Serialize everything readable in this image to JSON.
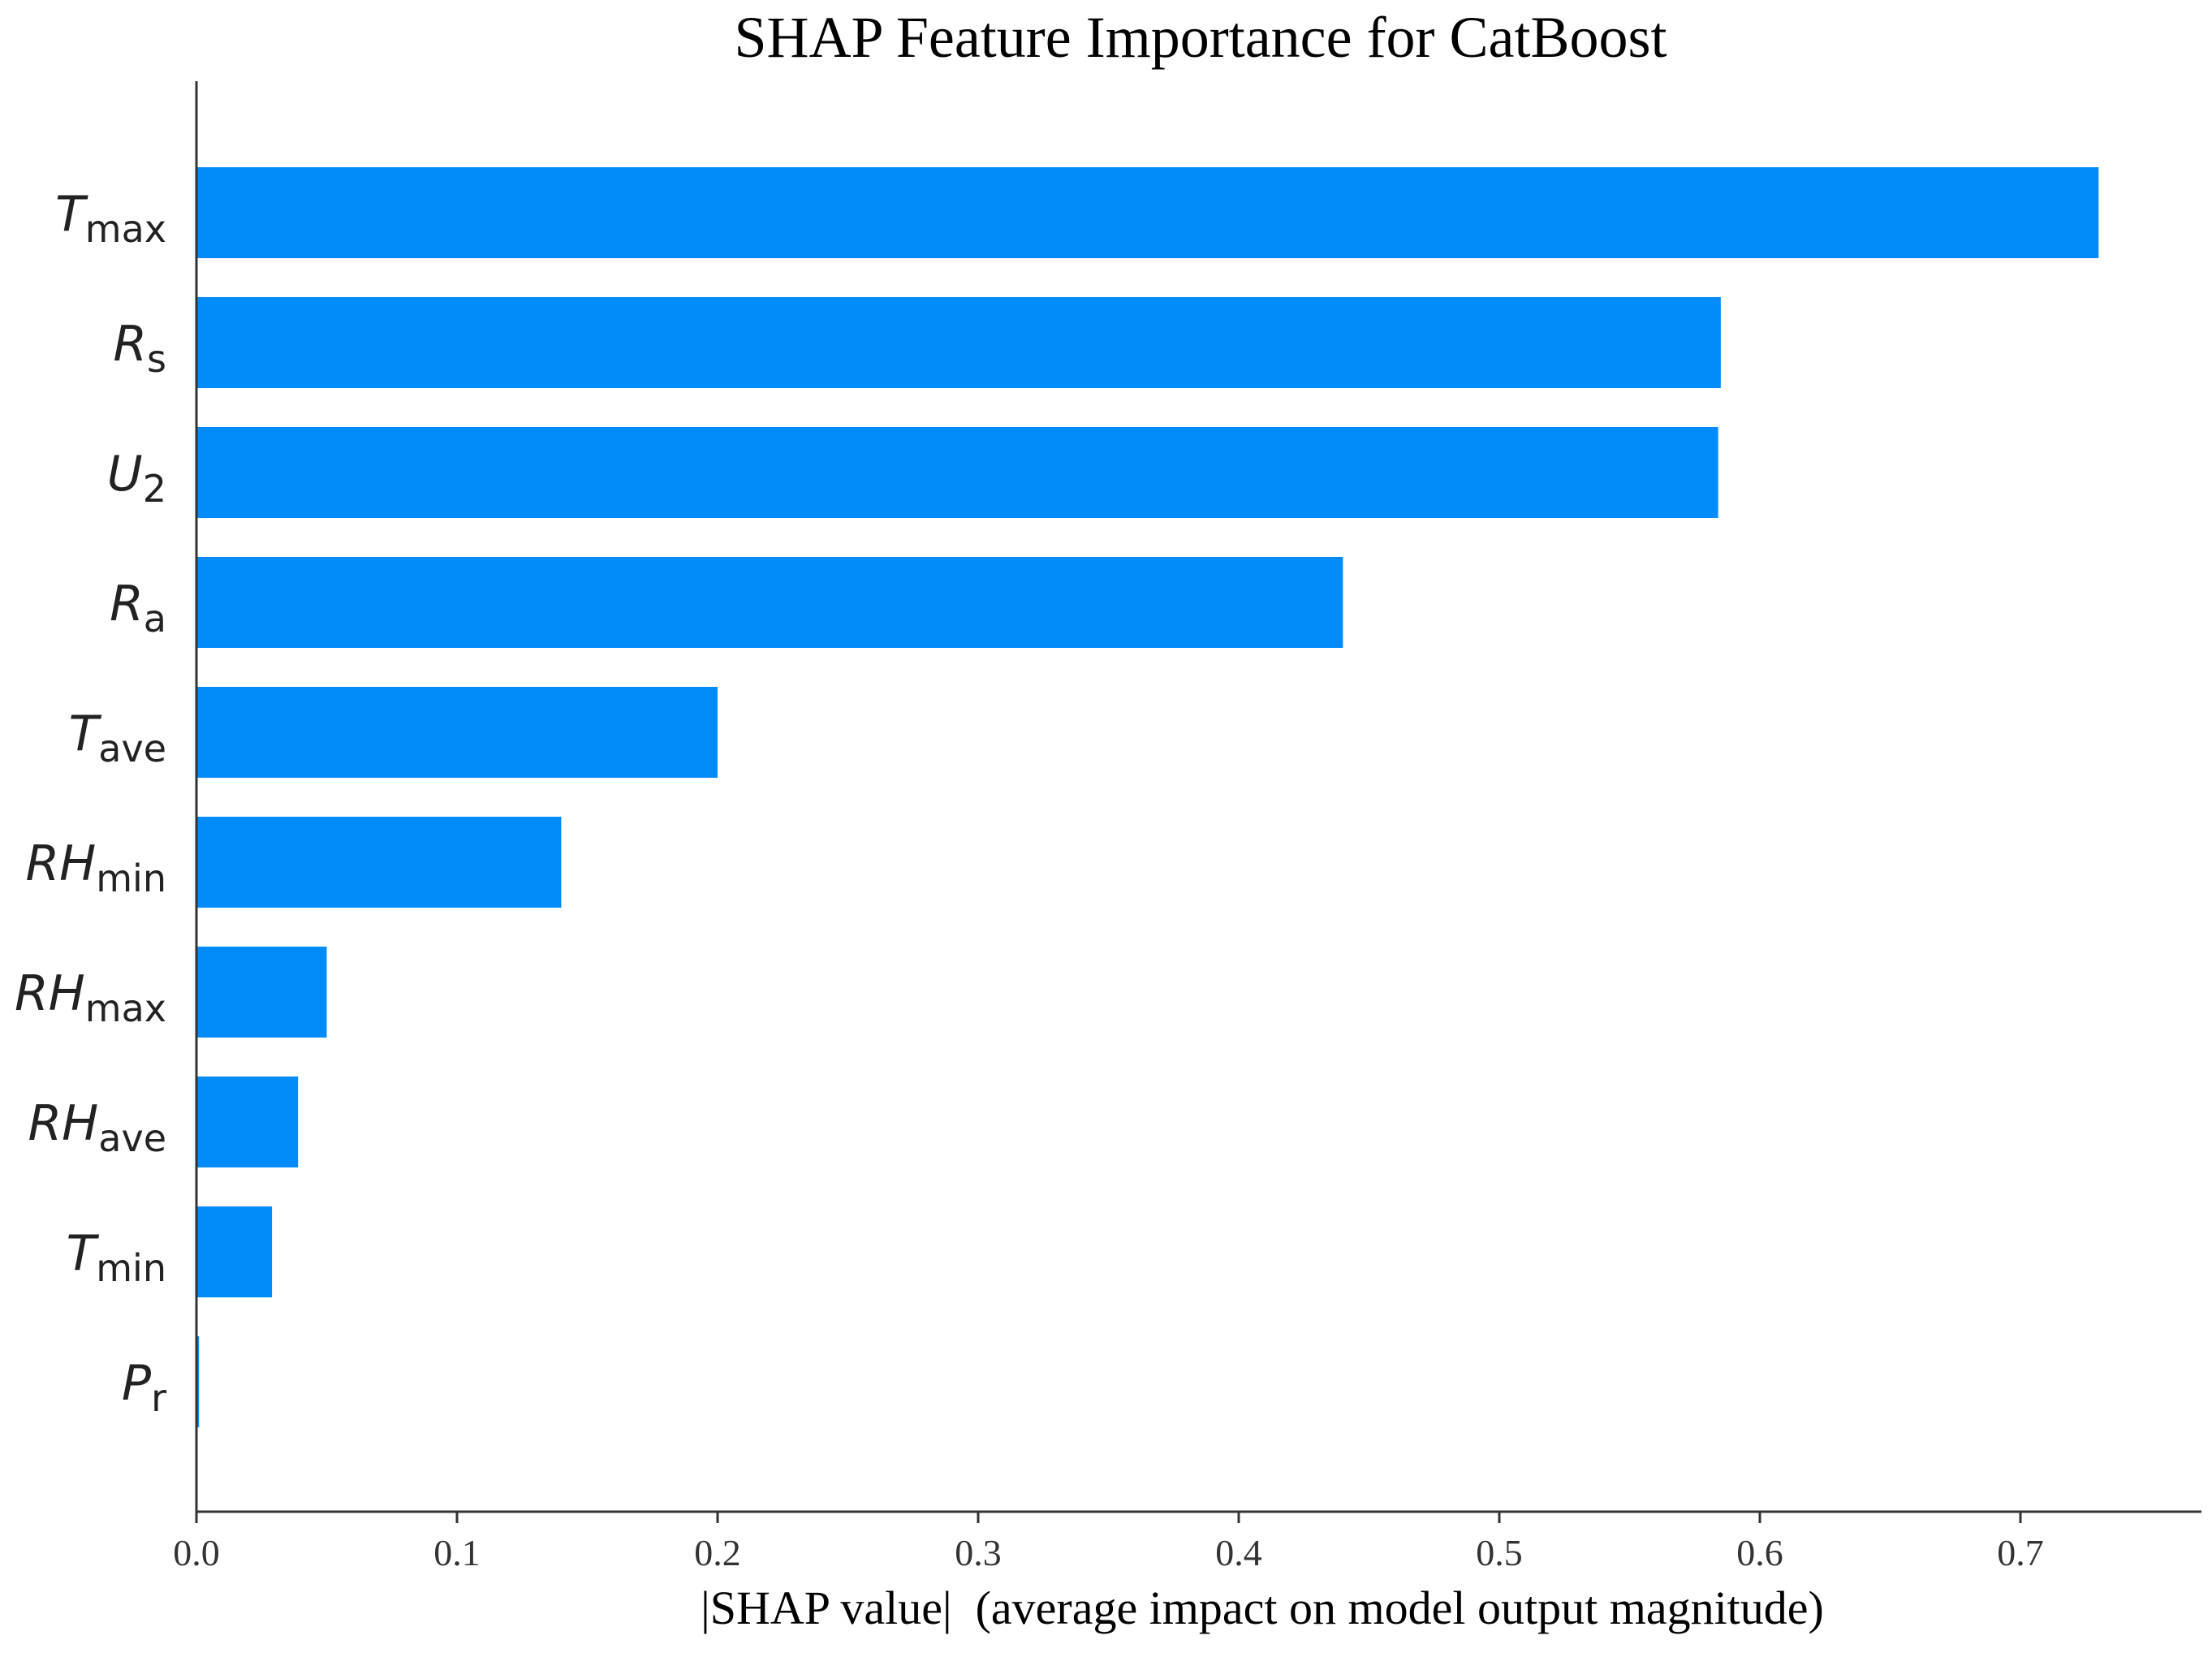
{
  "chart_data": {
    "type": "bar",
    "orientation": "horizontal",
    "title": "SHAP Feature Importance for CatBoost",
    "xlabel": "|SHAP value|  (average impact on model output magnitude)",
    "ylabel": "",
    "xlim": [
      0,
      0.77
    ],
    "xticks": [
      "0.0",
      "0.1",
      "0.2",
      "0.3",
      "0.4",
      "0.5",
      "0.6",
      "0.7"
    ],
    "grid": false,
    "bar_color": "#008bfb",
    "categories": [
      {
        "main": "T",
        "sub": "max",
        "value": 0.73
      },
      {
        "main": "R",
        "sub": "s",
        "value": 0.585
      },
      {
        "main": "U",
        "sub": "2",
        "value": 0.584
      },
      {
        "main": "R",
        "sub": "a",
        "value": 0.44
      },
      {
        "main": "T",
        "sub": "ave",
        "value": 0.2
      },
      {
        "main": "RH",
        "sub": "min",
        "value": 0.14
      },
      {
        "main": "RH",
        "sub": "max",
        "value": 0.05
      },
      {
        "main": "RH",
        "sub": "ave",
        "value": 0.039
      },
      {
        "main": "T",
        "sub": "min",
        "value": 0.029
      },
      {
        "main": "P",
        "sub": "r",
        "value": 0.001
      }
    ]
  }
}
